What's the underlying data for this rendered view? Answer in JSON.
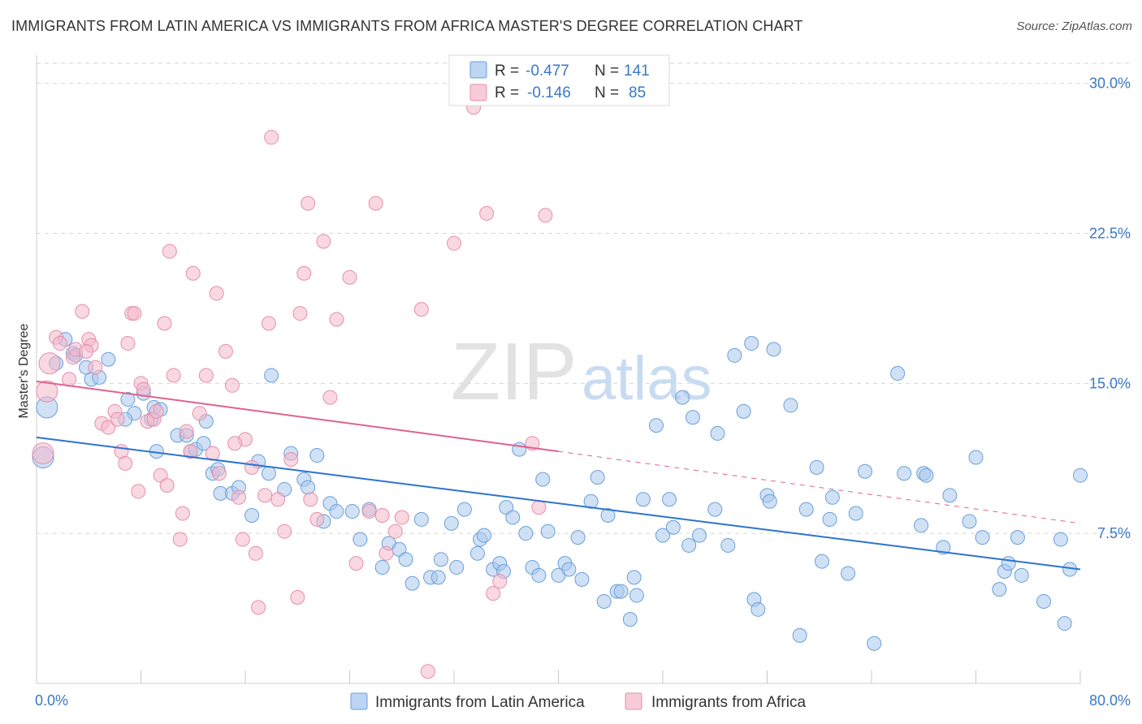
{
  "title": "IMMIGRANTS FROM LATIN AMERICA VS IMMIGRANTS FROM AFRICA MASTER'S DEGREE CORRELATION CHART",
  "source": "Source: ZipAtlas.com",
  "watermark": {
    "zip": "ZIP",
    "atlas": "atlas"
  },
  "colors": {
    "blue_fill": "#a9c8ef",
    "blue_stroke": "#6a9fd8",
    "blue_line": "#2d73cf",
    "pink_fill": "#f4b8cb",
    "pink_stroke": "#e590ab",
    "pink_line": "#e0628c",
    "axis_label": "#3b78c4",
    "grid": "#d6d6d6"
  },
  "legend": {
    "items": [
      {
        "r_label": "R =",
        "r_value": "-0.477",
        "n_label": "N =",
        "n_value": "141"
      },
      {
        "r_label": "R =",
        "r_value": "-0.146",
        "n_label": "N =",
        "n_value": "85"
      }
    ]
  },
  "chart_data": {
    "type": "scatter",
    "title": "IMMIGRANTS FROM LATIN AMERICA VS IMMIGRANTS FROM AFRICA MASTER'S DEGREE CORRELATION CHART",
    "xlabel": "",
    "ylabel": "Master's Degree",
    "xlim": [
      0,
      80
    ],
    "ylim": [
      0,
      31
    ],
    "x_tick_labels": [
      "0.0%",
      "80.0%"
    ],
    "y_ticks": [
      7.5,
      15.0,
      22.5,
      30.0
    ],
    "y_tick_labels": [
      "7.5%",
      "15.0%",
      "22.5%",
      "30.0%"
    ],
    "grid": true,
    "legend_position": "top-center",
    "series": [
      {
        "name": "Immigrants from Latin America",
        "color": "#a9c8ef",
        "r": -0.477,
        "n": 141,
        "trend": {
          "x": [
            0,
            80
          ],
          "y": [
            12.3,
            5.7
          ]
        },
        "points": [
          [
            0.5,
            11.3
          ],
          [
            0.8,
            13.8
          ],
          [
            1.5,
            16.0
          ],
          [
            2.2,
            17.2
          ],
          [
            2.8,
            16.5
          ],
          [
            3.0,
            16.4
          ],
          [
            3.8,
            15.8
          ],
          [
            4.2,
            15.2
          ],
          [
            4.8,
            15.3
          ],
          [
            5.5,
            16.2
          ],
          [
            7.0,
            14.2
          ],
          [
            7.5,
            13.5
          ],
          [
            8.2,
            14.5
          ],
          [
            9.0,
            13.8
          ],
          [
            9.5,
            13.7
          ],
          [
            6.8,
            13.2
          ],
          [
            8.8,
            13.2
          ],
          [
            9.2,
            11.6
          ],
          [
            10.8,
            12.4
          ],
          [
            11.5,
            12.4
          ],
          [
            11.8,
            11.6
          ],
          [
            12.2,
            11.7
          ],
          [
            12.8,
            12.0
          ],
          [
            13.0,
            13.1
          ],
          [
            13.5,
            10.5
          ],
          [
            13.9,
            10.7
          ],
          [
            14.1,
            9.5
          ],
          [
            15.0,
            9.5
          ],
          [
            15.5,
            9.8
          ],
          [
            16.5,
            8.4
          ],
          [
            17.0,
            11.1
          ],
          [
            17.8,
            10.5
          ],
          [
            18.0,
            15.4
          ],
          [
            19.0,
            9.7
          ],
          [
            19.5,
            11.5
          ],
          [
            20.5,
            10.2
          ],
          [
            20.8,
            9.8
          ],
          [
            21.5,
            11.4
          ],
          [
            22.0,
            8.1
          ],
          [
            22.5,
            9.0
          ],
          [
            23.0,
            8.6
          ],
          [
            24.2,
            8.6
          ],
          [
            24.8,
            7.2
          ],
          [
            25.5,
            8.7
          ],
          [
            26.5,
            5.8
          ],
          [
            27.0,
            7.0
          ],
          [
            27.8,
            6.7
          ],
          [
            28.3,
            6.2
          ],
          [
            28.8,
            5.0
          ],
          [
            29.5,
            8.2
          ],
          [
            30.2,
            5.3
          ],
          [
            30.8,
            5.3
          ],
          [
            31.0,
            6.2
          ],
          [
            31.8,
            8.0
          ],
          [
            32.2,
            5.8
          ],
          [
            32.8,
            8.7
          ],
          [
            33.8,
            6.5
          ],
          [
            34.0,
            7.2
          ],
          [
            34.3,
            7.4
          ],
          [
            35.0,
            5.7
          ],
          [
            35.5,
            6.0
          ],
          [
            35.8,
            5.6
          ],
          [
            36.0,
            8.8
          ],
          [
            36.5,
            8.3
          ],
          [
            37.0,
            11.7
          ],
          [
            37.5,
            7.5
          ],
          [
            38.0,
            5.8
          ],
          [
            38.5,
            5.4
          ],
          [
            38.8,
            10.2
          ],
          [
            39.2,
            7.6
          ],
          [
            40.0,
            5.4
          ],
          [
            40.5,
            6.0
          ],
          [
            40.8,
            5.7
          ],
          [
            41.5,
            7.3
          ],
          [
            41.8,
            5.2
          ],
          [
            42.5,
            9.1
          ],
          [
            43.0,
            10.3
          ],
          [
            43.5,
            4.1
          ],
          [
            43.8,
            8.4
          ],
          [
            44.5,
            4.6
          ],
          [
            44.8,
            4.6
          ],
          [
            45.5,
            3.2
          ],
          [
            45.8,
            5.3
          ],
          [
            46.0,
            4.4
          ],
          [
            46.5,
            9.2
          ],
          [
            47.5,
            12.9
          ],
          [
            48.0,
            7.4
          ],
          [
            48.5,
            9.2
          ],
          [
            48.8,
            7.8
          ],
          [
            49.5,
            14.3
          ],
          [
            50.0,
            6.9
          ],
          [
            50.3,
            13.3
          ],
          [
            50.8,
            7.4
          ],
          [
            52.0,
            8.7
          ],
          [
            52.2,
            12.5
          ],
          [
            53.0,
            6.9
          ],
          [
            53.5,
            16.4
          ],
          [
            54.2,
            13.6
          ],
          [
            54.8,
            17.0
          ],
          [
            55.0,
            4.2
          ],
          [
            55.3,
            3.7
          ],
          [
            56.0,
            9.4
          ],
          [
            56.2,
            9.1
          ],
          [
            56.5,
            16.7
          ],
          [
            57.8,
            13.9
          ],
          [
            58.5,
            2.4
          ],
          [
            59.0,
            8.7
          ],
          [
            59.8,
            10.8
          ],
          [
            60.8,
            8.2
          ],
          [
            61.0,
            9.3
          ],
          [
            62.2,
            5.5
          ],
          [
            62.8,
            8.5
          ],
          [
            63.5,
            10.6
          ],
          [
            64.2,
            2.0
          ],
          [
            66.0,
            15.5
          ],
          [
            66.5,
            10.5
          ],
          [
            67.8,
            7.9
          ],
          [
            68.0,
            10.5
          ],
          [
            68.2,
            10.4
          ],
          [
            69.5,
            6.8
          ],
          [
            70.0,
            9.4
          ],
          [
            71.5,
            8.1
          ],
          [
            72.0,
            11.3
          ],
          [
            72.5,
            7.3
          ],
          [
            73.8,
            4.7
          ],
          [
            74.2,
            5.6
          ],
          [
            74.5,
            6.0
          ],
          [
            75.2,
            7.3
          ],
          [
            75.5,
            5.4
          ],
          [
            77.2,
            4.1
          ],
          [
            78.8,
            3.0
          ],
          [
            79.2,
            5.7
          ],
          [
            80.0,
            10.4
          ],
          [
            78.5,
            7.2
          ],
          [
            60.2,
            6.1
          ]
        ]
      },
      {
        "name": "Immigrants from Africa",
        "color": "#f4b8cb",
        "r": -0.146,
        "n": 85,
        "trend": {
          "x": [
            0,
            40
          ],
          "y": [
            15.1,
            11.6
          ],
          "extrapolated": {
            "x": [
              40,
              80
            ],
            "y": [
              11.6,
              8.0
            ]
          }
        },
        "points": [
          [
            0.5,
            11.5
          ],
          [
            0.8,
            14.6
          ],
          [
            1.0,
            16.0
          ],
          [
            1.5,
            17.3
          ],
          [
            1.8,
            17.0
          ],
          [
            2.5,
            15.2
          ],
          [
            2.8,
            16.3
          ],
          [
            3.0,
            16.7
          ],
          [
            3.5,
            18.6
          ],
          [
            4.0,
            17.2
          ],
          [
            4.2,
            16.9
          ],
          [
            3.8,
            16.6
          ],
          [
            4.5,
            15.8
          ],
          [
            5.0,
            13.0
          ],
          [
            5.5,
            12.8
          ],
          [
            6.0,
            13.6
          ],
          [
            6.2,
            13.2
          ],
          [
            6.5,
            11.6
          ],
          [
            6.8,
            11.0
          ],
          [
            7.0,
            17.0
          ],
          [
            7.3,
            18.5
          ],
          [
            7.5,
            18.5
          ],
          [
            7.8,
            9.6
          ],
          [
            8.0,
            15.0
          ],
          [
            8.2,
            14.7
          ],
          [
            8.5,
            13.1
          ],
          [
            9.0,
            13.2
          ],
          [
            9.2,
            13.6
          ],
          [
            9.5,
            10.4
          ],
          [
            10.0,
            9.9
          ],
          [
            10.2,
            21.6
          ],
          [
            10.5,
            15.4
          ],
          [
            11.0,
            7.2
          ],
          [
            11.2,
            8.5
          ],
          [
            11.5,
            12.6
          ],
          [
            11.8,
            11.6
          ],
          [
            12.0,
            20.5
          ],
          [
            12.5,
            13.5
          ],
          [
            13.0,
            15.4
          ],
          [
            13.5,
            11.5
          ],
          [
            13.8,
            19.5
          ],
          [
            14.0,
            10.5
          ],
          [
            14.5,
            16.6
          ],
          [
            15.0,
            14.9
          ],
          [
            15.5,
            9.3
          ],
          [
            15.8,
            7.2
          ],
          [
            16.0,
            12.2
          ],
          [
            16.5,
            10.8
          ],
          [
            16.8,
            6.5
          ],
          [
            17.0,
            3.8
          ],
          [
            17.5,
            9.4
          ],
          [
            17.8,
            18.0
          ],
          [
            18.0,
            27.3
          ],
          [
            18.5,
            9.2
          ],
          [
            19.0,
            7.6
          ],
          [
            19.5,
            11.2
          ],
          [
            20.0,
            4.3
          ],
          [
            20.2,
            18.5
          ],
          [
            20.5,
            20.5
          ],
          [
            20.8,
            24.0
          ],
          [
            21.0,
            9.2
          ],
          [
            21.5,
            8.2
          ],
          [
            22.0,
            22.1
          ],
          [
            22.5,
            14.3
          ],
          [
            23.0,
            18.2
          ],
          [
            24.0,
            20.3
          ],
          [
            24.5,
            6.0
          ],
          [
            25.5,
            8.6
          ],
          [
            26.0,
            24.0
          ],
          [
            26.5,
            8.4
          ],
          [
            26.8,
            6.5
          ],
          [
            27.5,
            7.6
          ],
          [
            28.0,
            8.3
          ],
          [
            29.5,
            18.7
          ],
          [
            30.0,
            0.6
          ],
          [
            32.0,
            22.0
          ],
          [
            33.5,
            28.8
          ],
          [
            34.5,
            23.5
          ],
          [
            35.0,
            4.5
          ],
          [
            35.5,
            5.1
          ],
          [
            38.0,
            12.0
          ],
          [
            38.5,
            8.8
          ],
          [
            39.0,
            23.4
          ],
          [
            15.2,
            12.0
          ],
          [
            9.8,
            18.0
          ]
        ]
      }
    ]
  }
}
